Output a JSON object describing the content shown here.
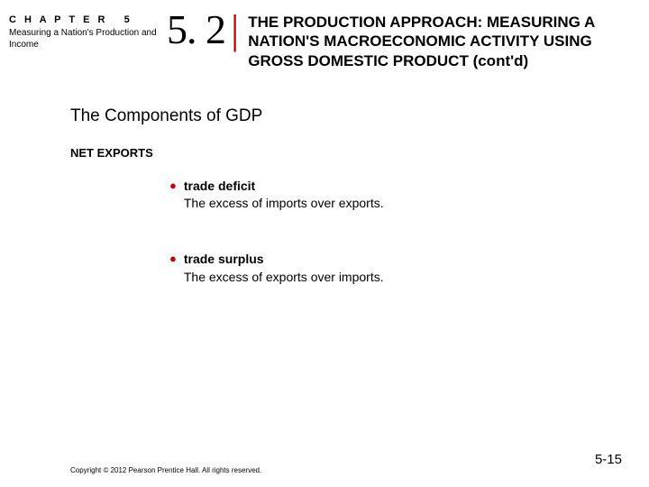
{
  "header": {
    "chapter_label": "C H A P T E R   5",
    "chapter_title": "Measuring a Nation's Production and Income",
    "section_number": "5. 2",
    "section_title": "THE PRODUCTION APPROACH: MEASURING A NATION'S MACROECONOMIC ACTIVITY USING GROSS DOMESTIC PRODUCT (cont'd)"
  },
  "content": {
    "heading": "The Components of GDP",
    "subheading": "NET EXPORTS",
    "bullets": [
      {
        "term": "trade deficit",
        "definition": "The excess of imports over exports."
      },
      {
        "term": "trade surplus",
        "definition": "The excess of exports over imports."
      }
    ]
  },
  "footer": {
    "copyright": "Copyright © 2012 Pearson Prentice Hall. All rights reserved.",
    "page_number": "5-15"
  },
  "colors": {
    "accent": "#c00000",
    "text": "#000000",
    "background": "#ffffff"
  }
}
